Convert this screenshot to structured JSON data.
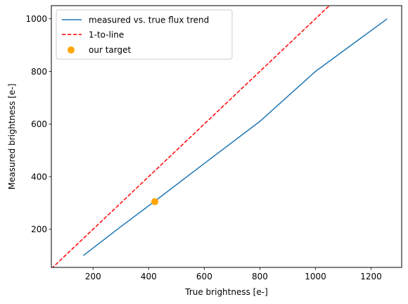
{
  "chart_data": {
    "type": "line",
    "title": "",
    "xlabel": "True brightness [e-]",
    "ylabel": "Measured brightness [e-]",
    "xlim": [
      50,
      1310
    ],
    "ylim": [
      55,
      1050
    ],
    "xticks": [
      200,
      400,
      600,
      800,
      1000,
      1200
    ],
    "yticks": [
      200,
      400,
      600,
      800,
      1000
    ],
    "grid": false,
    "legend_position": "upper-left",
    "series": [
      {
        "name": "measured vs. true flux trend",
        "kind": "line",
        "style": "solid",
        "color": "#1f77b4",
        "points": [
          [
            165,
            100
          ],
          [
            300,
            210
          ],
          [
            420,
            305
          ],
          [
            600,
            450
          ],
          [
            800,
            610
          ],
          [
            1000,
            800
          ],
          [
            1258,
            1000
          ]
        ]
      },
      {
        "name": "1-to-line",
        "kind": "line",
        "style": "dashed",
        "color": "#ff0000",
        "points": [
          [
            50,
            50
          ],
          [
            1060,
            1060
          ]
        ]
      },
      {
        "name": "our target",
        "kind": "scatter",
        "color": "#ffa500",
        "points": [
          [
            422,
            305
          ]
        ]
      }
    ]
  }
}
